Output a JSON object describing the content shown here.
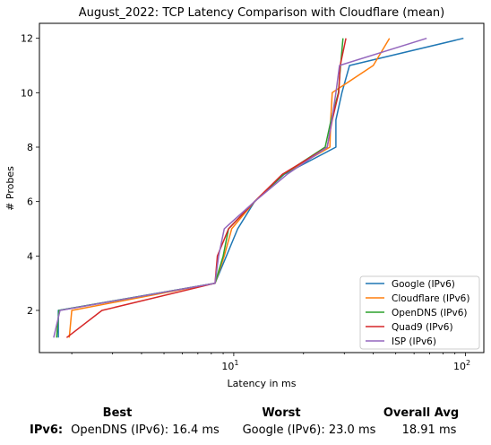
{
  "chart_data": {
    "type": "line",
    "title": "August_2022: TCP Latency Comparison with Cloudflare (mean)",
    "xlabel": "Latency in ms",
    "ylabel": "# Probes",
    "xscale": "log",
    "xlim": [
      1.45,
      120
    ],
    "ylim": [
      0.45,
      12.55
    ],
    "x_tick_labels": [
      {
        "value": 10,
        "base": "10",
        "exp": "1"
      },
      {
        "value": 100,
        "base": "10",
        "exp": "2"
      }
    ],
    "y_ticks": [
      2,
      4,
      6,
      8,
      10,
      12
    ],
    "legend_position": "lower right",
    "grid": false,
    "series": [
      {
        "name": "Google (IPv6)",
        "color": "#1f77b4",
        "points": [
          [
            1.75,
            1
          ],
          [
            1.75,
            2
          ],
          [
            8.3,
            3
          ],
          [
            9.3,
            4
          ],
          [
            10.4,
            5
          ],
          [
            12.3,
            6
          ],
          [
            16.5,
            7
          ],
          [
            27.6,
            8
          ],
          [
            27.6,
            9
          ],
          [
            29.3,
            10
          ],
          [
            31.6,
            11
          ],
          [
            98,
            12
          ]
        ]
      },
      {
        "name": "Cloudflare (IPv6)",
        "color": "#ff7f0e",
        "points": [
          [
            1.95,
            1
          ],
          [
            2.0,
            2
          ],
          [
            8.3,
            3
          ],
          [
            9.1,
            4
          ],
          [
            9.8,
            5
          ],
          [
            12.3,
            6
          ],
          [
            16.3,
            7
          ],
          [
            26.0,
            8
          ],
          [
            26.2,
            9
          ],
          [
            26.6,
            10
          ],
          [
            40,
            11
          ],
          [
            47,
            12
          ]
        ]
      },
      {
        "name": "OpenDNS (IPv6)",
        "color": "#2ca02c",
        "points": [
          [
            1.72,
            1
          ],
          [
            1.76,
            2
          ],
          [
            8.3,
            3
          ],
          [
            9.0,
            4
          ],
          [
            9.5,
            5
          ],
          [
            12.3,
            6
          ],
          [
            16.4,
            7
          ],
          [
            24.8,
            8
          ],
          [
            26.3,
            9
          ],
          [
            28.3,
            10
          ],
          [
            28.9,
            11
          ],
          [
            29.6,
            12
          ]
        ]
      },
      {
        "name": "Quad9 (IPv6)",
        "color": "#d62728",
        "points": [
          [
            1.9,
            1
          ],
          [
            2.7,
            2
          ],
          [
            8.3,
            3
          ],
          [
            8.5,
            4
          ],
          [
            9.5,
            5
          ],
          [
            12.3,
            6
          ],
          [
            16.2,
            7
          ],
          [
            25.3,
            8
          ],
          [
            26.6,
            9
          ],
          [
            28.4,
            10
          ],
          [
            28.8,
            11
          ],
          [
            30.5,
            12
          ]
        ]
      },
      {
        "name": "ISP (IPv6)",
        "color": "#9467bd",
        "points": [
          [
            1.67,
            1
          ],
          [
            1.78,
            2
          ],
          [
            8.3,
            3
          ],
          [
            8.6,
            4
          ],
          [
            9.1,
            5
          ],
          [
            12.3,
            6
          ],
          [
            17.0,
            7
          ],
          [
            25.3,
            8
          ],
          [
            26.5,
            9
          ],
          [
            27.6,
            10
          ],
          [
            28.6,
            11
          ],
          [
            68,
            12
          ]
        ]
      }
    ]
  },
  "summary": {
    "headers": {
      "best": "Best",
      "worst": "Worst",
      "overall": "Overall Avg"
    },
    "row_label": "IPv6",
    "row_label_suffix": ":",
    "best": "OpenDNS (IPv6): 16.4 ms",
    "worst": "Google (IPv6): 23.0 ms",
    "overall": "18.91 ms"
  }
}
